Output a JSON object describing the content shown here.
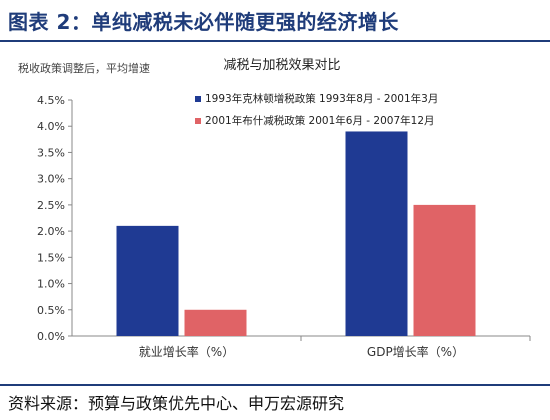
{
  "figure_title": "图表 2：单纯减税未必伴随更强的经济增长",
  "source_note": "资料来源：预算与政策优先中心、申万宏源研究",
  "colors": {
    "title": "#1f3c7a",
    "series1": "#1f3a93",
    "series2": "#e06366"
  },
  "chart_data": {
    "type": "bar",
    "title": "减税与加税效果对比",
    "subtitle": "税收政策调整后，平均增速",
    "categories": [
      "就业增长率（%）",
      "GDP增长率（%）"
    ],
    "series": [
      {
        "name": "1993年克林顿增税政策 1993年8月 - 2001年3月",
        "values": [
          2.1,
          3.9
        ]
      },
      {
        "name": "2001年布什减税政策 2001年6月 - 2007年12月",
        "values": [
          0.5,
          2.5
        ]
      }
    ],
    "ylim": [
      0,
      4.5
    ],
    "y_ticks": [
      "0.0%",
      "0.5%",
      "1.0%",
      "1.5%",
      "2.0%",
      "2.5%",
      "3.0%",
      "3.5%",
      "4.0%",
      "4.5%"
    ],
    "legend_position": "top-right",
    "grid": false
  }
}
